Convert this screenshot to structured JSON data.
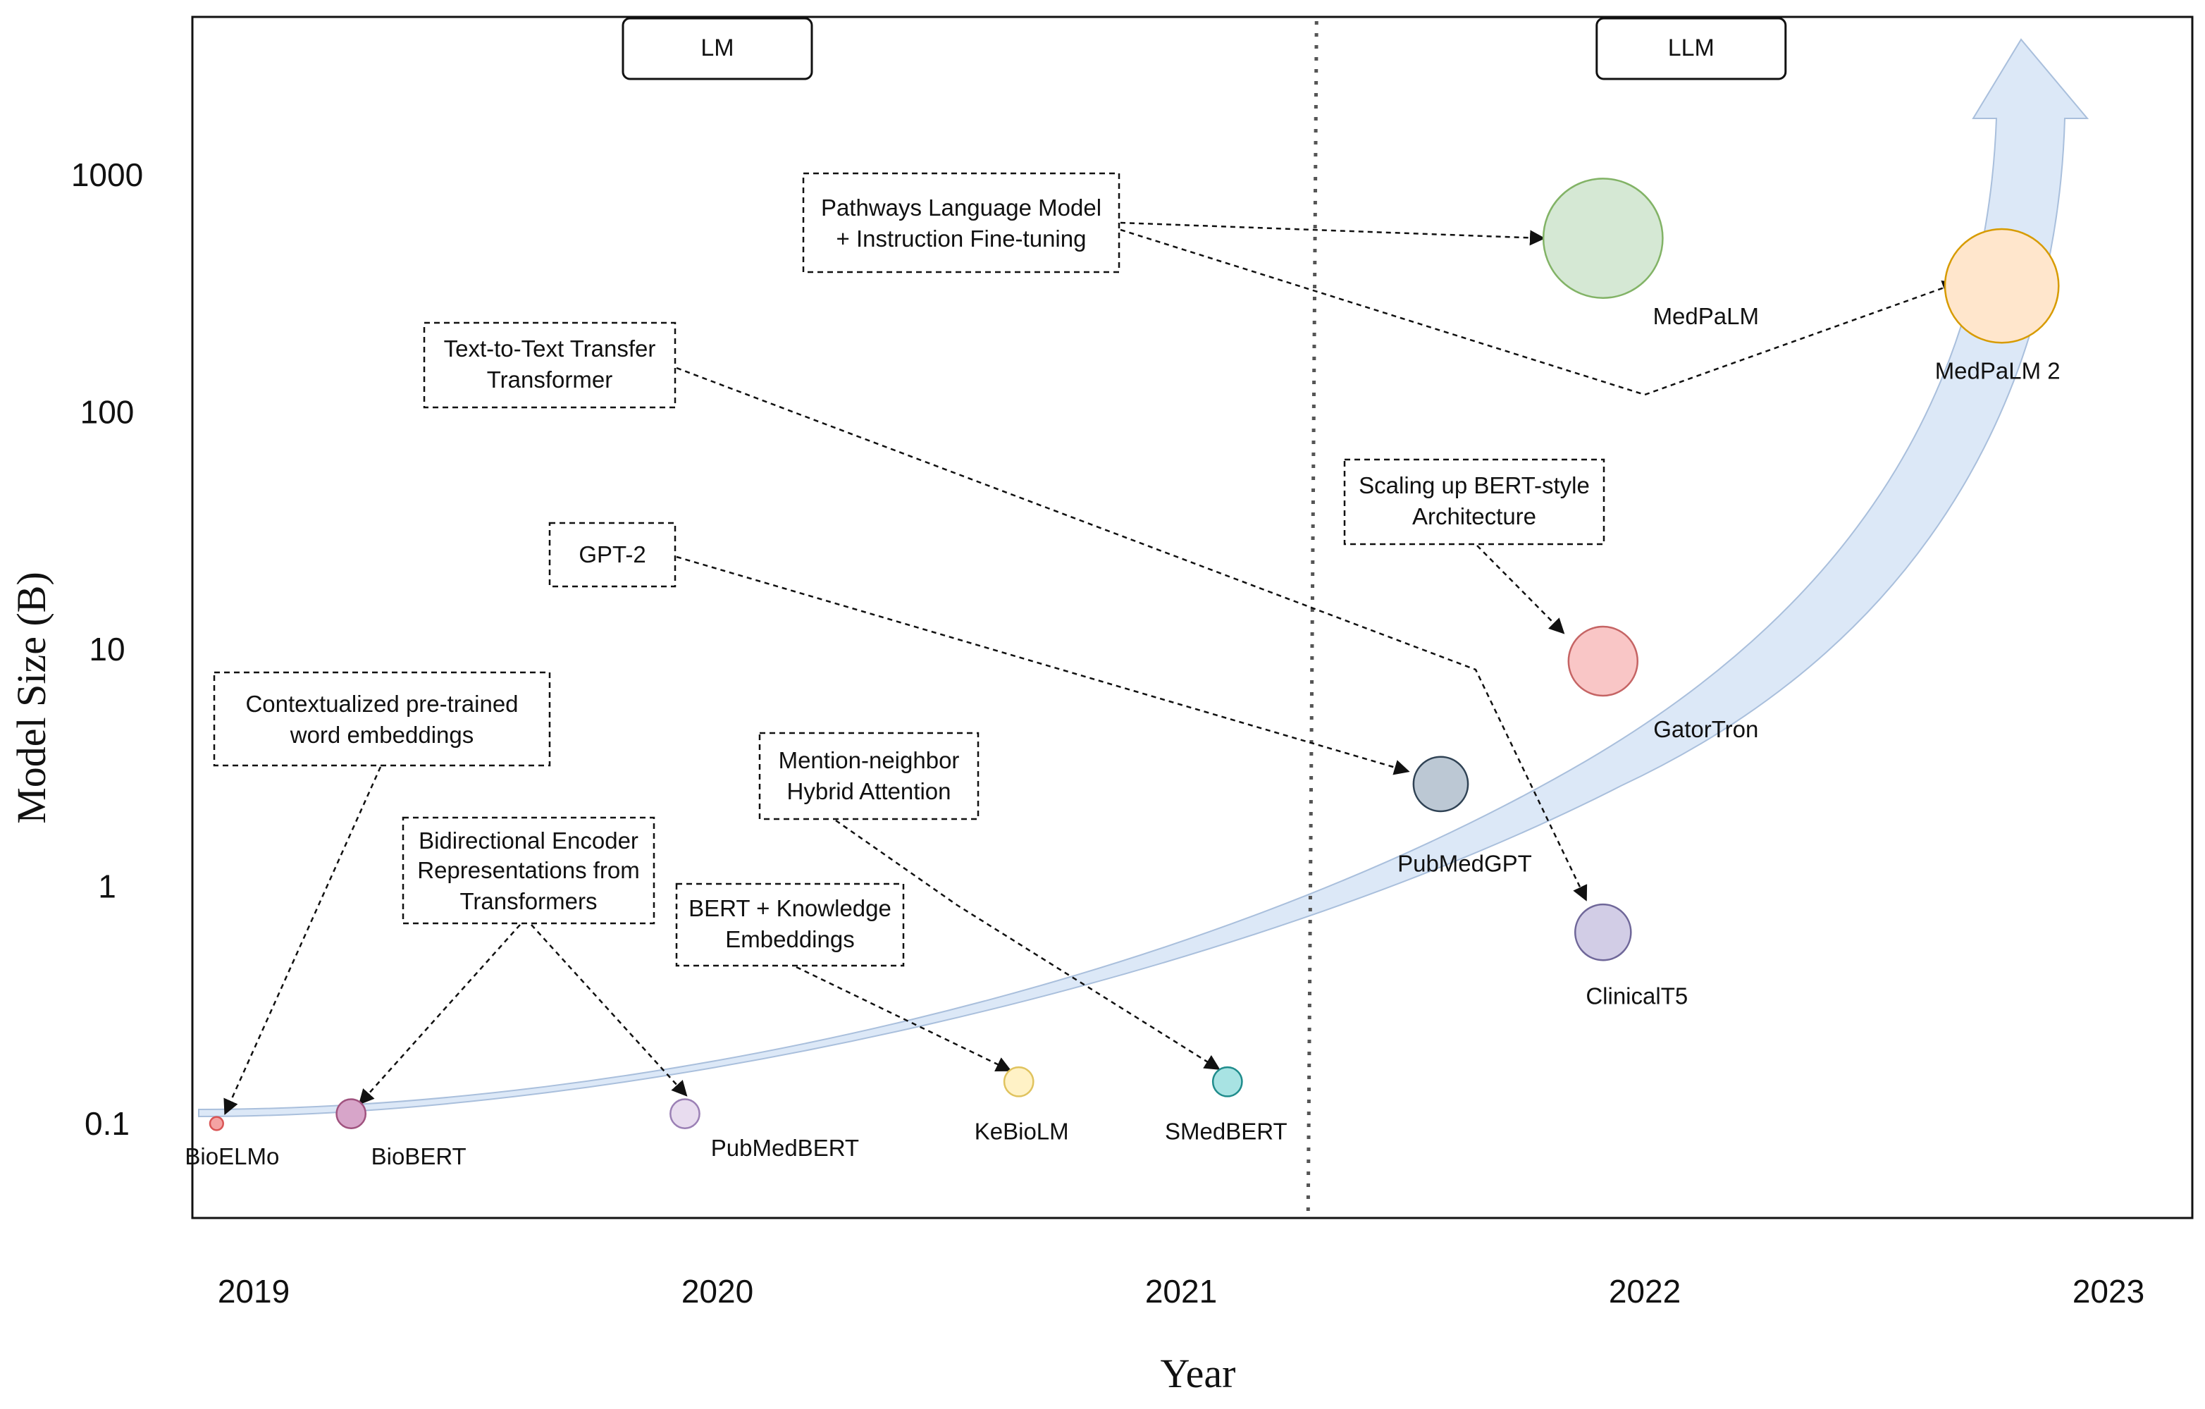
{
  "chart_data": {
    "type": "scatter",
    "title": "",
    "xlabel": "Year",
    "ylabel": "Model Size (B)",
    "yscale": "log",
    "xlim": [
      2019,
      2023
    ],
    "x_ticks": [
      2019,
      2020,
      2021,
      2022,
      2023
    ],
    "y_ticks": [
      {
        "value": 0.1,
        "label": "0.1"
      },
      {
        "value": 1,
        "label": "1"
      },
      {
        "value": 10,
        "label": "10"
      },
      {
        "value": 100,
        "label": "100"
      },
      {
        "value": 1000,
        "label": "1000"
      }
    ],
    "eras": [
      {
        "label": "LM",
        "x": 2020.0
      },
      {
        "label": "LLM",
        "x": 2022.1
      }
    ],
    "era_divider_x": 2021.28,
    "trend_arrow_color": "#dce8f7",
    "points": [
      {
        "name": "BioELMo",
        "x": 2018.92,
        "y": 0.1,
        "size": 0.093,
        "fill": "#f4a3a3",
        "stroke": "#d95555"
      },
      {
        "name": "BioBERT",
        "x": 2019.21,
        "y": 0.11,
        "size": 0.34,
        "fill": "#d7a5c9",
        "stroke": "#a0537f"
      },
      {
        "name": "PubMedBERT",
        "x": 2019.93,
        "y": 0.11,
        "size": 0.34,
        "fill": "#e8dcef",
        "stroke": "#9b80b5"
      },
      {
        "name": "KeBioLM",
        "x": 2020.65,
        "y": 0.15,
        "size": 0.34,
        "fill": "#fff2c6",
        "stroke": "#e0c35e"
      },
      {
        "name": "SMedBERT",
        "x": 2021.1,
        "y": 0.15,
        "size": 0.34,
        "fill": "#a8e3e3",
        "stroke": "#1f8c8c"
      },
      {
        "name": "PubMedGPT",
        "x": 2021.56,
        "y": 2.7,
        "size": 2.7,
        "fill": "#bcc8d4",
        "stroke": "#2f4254"
      },
      {
        "name": "GatorTron",
        "x": 2021.91,
        "y": 8.9,
        "size": 8.9,
        "fill": "#f9c6c6",
        "stroke": "#c56464"
      },
      {
        "name": "ClinicalT5",
        "x": 2021.91,
        "y": 0.64,
        "size": 3.0,
        "fill": "#d2cde6",
        "stroke": "#6f6799"
      },
      {
        "name": "MedPaLM",
        "x": 2021.91,
        "y": 540,
        "size": 540,
        "fill": "#d5e8d4",
        "stroke": "#82b366"
      },
      {
        "name": "MedPaLM 2",
        "x": 2022.77,
        "y": 340,
        "size": 340,
        "fill": "#ffe6cc",
        "stroke": "#d79b00"
      }
    ],
    "annotations": [
      {
        "text": [
          "Contextualized pre-trained",
          "word embeddings"
        ],
        "target": "BioELMo"
      },
      {
        "text": [
          "Bidirectional Encoder",
          "Representations from",
          "Transformers"
        ],
        "target": [
          "BioBERT",
          "PubMedBERT"
        ]
      },
      {
        "text": [
          "BERT + Knowledge",
          "Embeddings"
        ],
        "target": "KeBioLM"
      },
      {
        "text": [
          "Mention-neighbor",
          "Hybrid Attention"
        ],
        "target": "SMedBERT"
      },
      {
        "text": [
          "GPT-2"
        ],
        "target": "PubMedGPT"
      },
      {
        "text": [
          "Text-to-Text Transfer",
          "Transformer"
        ],
        "target": "ClinicalT5"
      },
      {
        "text": [
          "Scaling up BERT-style",
          "Architecture"
        ],
        "target": "GatorTron"
      },
      {
        "text": [
          "Pathways Language Model",
          "+ Instruction Fine-tuning"
        ],
        "target": [
          "MedPaLM",
          "MedPaLM 2"
        ]
      }
    ]
  }
}
